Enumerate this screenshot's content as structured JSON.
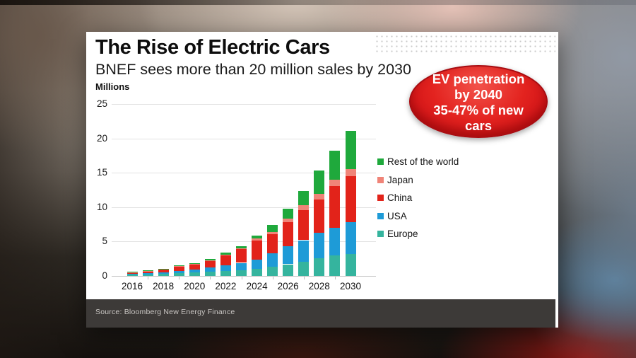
{
  "card": {
    "title": "The Rise of Electric Cars",
    "subtitle": "BNEF sees more than 20 million sales by 2030",
    "units_label": "Millions",
    "source": "Source: Bloomberg New Energy Finance"
  },
  "annotation": {
    "lines": [
      "EV penetration",
      "by 2040",
      "35-47% of new",
      "cars"
    ],
    "fill": "#dd1b1e"
  },
  "colors": {
    "card_bg": "#ffffff",
    "source_bar_bg": "#3d3a38",
    "grid": "#e2e2e2",
    "axis": "#c6c6c6",
    "dots": "#c9c9c9"
  },
  "chart_data": {
    "type": "bar",
    "stacked": true,
    "title": "The Rise of Electric Cars",
    "subtitle": "BNEF sees more than 20 million sales by 2030",
    "ylabel": "Millions",
    "ylim": [
      0,
      25
    ],
    "yticks": [
      0,
      5,
      10,
      15,
      20,
      25
    ],
    "grid": true,
    "legend_position": "right",
    "x": [
      2016,
      2017,
      2018,
      2019,
      2020,
      2021,
      2022,
      2023,
      2024,
      2025,
      2026,
      2027,
      2028,
      2029,
      2030
    ],
    "xticks": [
      2016,
      2018,
      2020,
      2022,
      2024,
      2026,
      2028,
      2030
    ],
    "series": [
      {
        "name": "Europe",
        "color": "#35b49e",
        "values": [
          0.2,
          0.25,
          0.3,
          0.4,
          0.5,
          0.6,
          0.7,
          0.85,
          1.05,
          1.35,
          1.7,
          2.1,
          2.55,
          3.0,
          3.2
        ]
      },
      {
        "name": "USA",
        "color": "#1e9bd7",
        "values": [
          0.1,
          0.15,
          0.2,
          0.35,
          0.45,
          0.6,
          0.8,
          1.05,
          1.35,
          1.9,
          2.6,
          3.1,
          3.7,
          4.0,
          4.6
        ]
      },
      {
        "name": "China",
        "color": "#e2231a",
        "values": [
          0.22,
          0.3,
          0.45,
          0.6,
          0.75,
          1.0,
          1.5,
          2.0,
          2.75,
          2.8,
          3.5,
          4.4,
          4.9,
          6.1,
          6.7
        ]
      },
      {
        "name": "Japan",
        "color": "#f08478",
        "values": [
          0.03,
          0.04,
          0.05,
          0.06,
          0.08,
          0.1,
          0.12,
          0.15,
          0.3,
          0.35,
          0.55,
          0.65,
          0.75,
          0.85,
          1.0
        ]
      },
      {
        "name": "Rest of the world",
        "color": "#1fa93c",
        "values": [
          0.03,
          0.04,
          0.06,
          0.09,
          0.12,
          0.15,
          0.23,
          0.3,
          0.45,
          1.05,
          1.45,
          2.1,
          3.4,
          4.25,
          5.6
        ]
      }
    ],
    "legend": [
      "Rest of the world",
      "Japan",
      "China",
      "USA",
      "Europe"
    ]
  }
}
